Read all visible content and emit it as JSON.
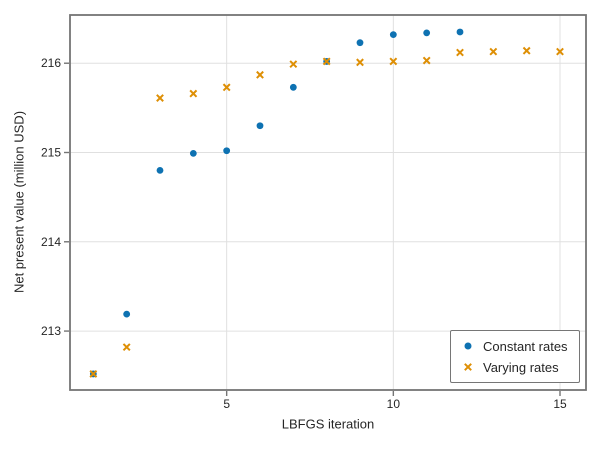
{
  "chart_data": {
    "type": "scatter",
    "title": "",
    "xlabel": "LBFGS iteration",
    "ylabel": "Net present value (million USD)",
    "xlim": [
      0.3,
      15.78
    ],
    "ylim": [
      212.34,
      216.54
    ],
    "xticks": [
      5,
      10,
      15
    ],
    "yticks": [
      213,
      214,
      215,
      216
    ],
    "grid": true,
    "legend_position": "lower right",
    "series": [
      {
        "name": "Constant rates",
        "marker": "circle",
        "color": "#0e72b2",
        "x": [
          1,
          2,
          3,
          4,
          5,
          6,
          7,
          8,
          9,
          10,
          11,
          12
        ],
        "y": [
          212.52,
          213.19,
          214.8,
          214.99,
          215.02,
          215.3,
          215.73,
          216.02,
          216.23,
          216.32,
          216.34,
          216.35
        ]
      },
      {
        "name": "Varying rates",
        "marker": "x",
        "color": "#de8f05",
        "x": [
          1,
          2,
          3,
          4,
          5,
          6,
          7,
          8,
          9,
          10,
          11,
          12,
          13,
          14,
          15
        ],
        "y": [
          212.52,
          212.82,
          215.61,
          215.66,
          215.73,
          215.87,
          215.99,
          216.02,
          216.01,
          216.02,
          216.03,
          216.12,
          216.13,
          216.14,
          216.13
        ]
      }
    ]
  },
  "styles": {
    "grid_color": "#e0e0e0",
    "spine_color": "#757575",
    "tick_color": "#757575",
    "text_color": "#262626",
    "background": "#ffffff"
  }
}
